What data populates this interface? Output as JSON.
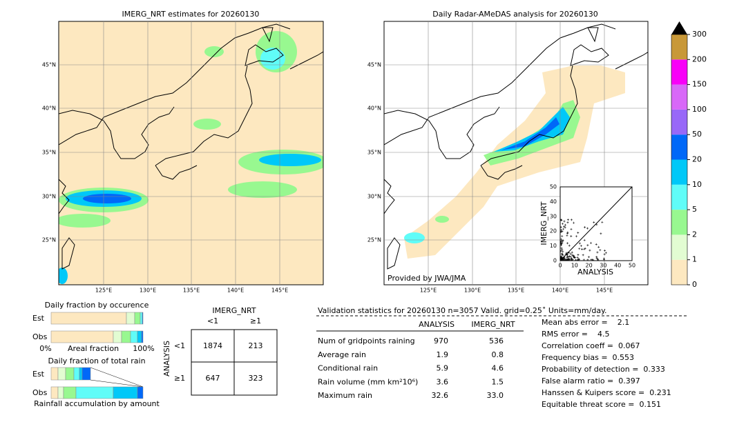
{
  "left_map": {
    "title": "IMERG_NRT estimates for 20260130",
    "lat_labels": [
      "45°N",
      "40°N",
      "35°N",
      "30°N",
      "25°N"
    ],
    "lon_labels": [
      "125°E",
      "130°E",
      "135°E",
      "140°E",
      "145°E"
    ]
  },
  "right_map": {
    "title": "Daily Radar-AMeDAS analysis for 20260130",
    "lat_labels": [
      "45°N",
      "40°N",
      "35°N",
      "30°N",
      "25°N"
    ],
    "lon_labels": [
      "125°E",
      "130°E",
      "135°E",
      "140°E",
      "145°E"
    ],
    "credit": "Provided by JWA/JMA"
  },
  "inset": {
    "y_label": "IMERG_NRT",
    "x_label": "ANALYSIS",
    "ticks": [
      "0",
      "10",
      "20",
      "30",
      "40",
      "50"
    ]
  },
  "colorbar": {
    "labels": [
      "0",
      "1",
      "2",
      "5",
      "10",
      "20",
      "50",
      "100",
      "150",
      "200",
      "300"
    ],
    "colors": [
      "#fde8c0",
      "#e2fcd2",
      "#98f890",
      "#60fcf8",
      "#00c8f8",
      "#0068f8",
      "#9868f8",
      "#d868f8",
      "#f800f8",
      "#c89838"
    ]
  },
  "occurrence": {
    "title": "Daily fraction by occurence",
    "rows": [
      "Est",
      "Obs"
    ],
    "axis_left": "0%",
    "axis_label": "Areal fraction",
    "axis_right": "100%"
  },
  "total_rain": {
    "title": "Daily fraction of total rain",
    "rows": [
      "Est",
      "Obs"
    ],
    "axis_label": "Rainfall accumulation by amount"
  },
  "contingency": {
    "col_title": "IMERG_NRT",
    "cols": [
      "<1",
      "≥1"
    ],
    "row_title": "ANALYSIS",
    "rows": [
      "<1",
      "≥1"
    ],
    "cells": [
      [
        "1874",
        "213"
      ],
      [
        "647",
        "323"
      ]
    ]
  },
  "validation": {
    "header": "Validation statistics for 20260130  n=3057 Valid. grid=0.25˚ Units=mm/day.",
    "columns": [
      "ANALYSIS",
      "IMERG_NRT"
    ],
    "rows": [
      {
        "label": "Num of gridpoints raining",
        "values": [
          "970",
          "536"
        ]
      },
      {
        "label": "Average rain",
        "values": [
          "1.9",
          "0.8"
        ]
      },
      {
        "label": "Conditional rain",
        "values": [
          "5.9",
          "4.6"
        ]
      },
      {
        "label": "Rain volume (mm km²10⁶)",
        "values": [
          "3.6",
          "1.5"
        ]
      },
      {
        "label": "Maximum rain",
        "values": [
          "32.6",
          "33.0"
        ]
      }
    ],
    "scores": [
      "Mean abs error =    2.1",
      "RMS error =    4.5",
      "Correlation coeff =  0.067",
      "Frequency bias =  0.553",
      "Probability of detection =  0.333",
      "False alarm ratio =  0.397",
      "Hanssen & Kuipers score =  0.231",
      "Equitable threat score =  0.151"
    ]
  }
}
